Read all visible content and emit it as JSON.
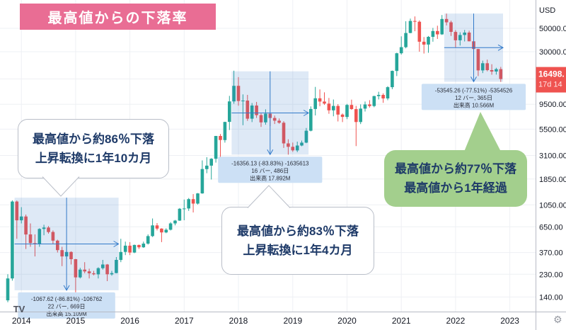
{
  "title": "最高値からの下落率",
  "colors": {
    "up": "#26a69a",
    "down": "#ef5350",
    "banner_pink": "#e96d94",
    "callout_green": "#a3cf8d",
    "measure_blue": "#3179c9",
    "measure_fill": "rgba(49,121,201,0.16)",
    "measure_label_bg": "#c9def4",
    "grid": "#eef0f4",
    "axis_text": "#131722"
  },
  "callouts": [
    {
      "line1": "最高値から約86％下落",
      "line2": "上昇転換に1年10カ月"
    },
    {
      "line1": "最高値から約83％下落",
      "line2": "上昇転換に1年4カ月"
    },
    {
      "line1": "最高値から約77％下落",
      "line2": "最高値から1年経過"
    }
  ],
  "measurements": [
    {
      "from": 2,
      "to": 24,
      "price_from": 1230,
      "price_to": 162,
      "stats": [
        "-1067.62 (-86.81%) -106762",
        "22 バー, 669日",
        "出来高 15.109M"
      ]
    },
    {
      "from": 50,
      "to": 66,
      "price_from": 19510,
      "price_to": 3154,
      "stats": [
        "-16356.13 (-83.83%) -1635613",
        "16 バー, 486日",
        "出来高 17.892M"
      ]
    },
    {
      "from": 97,
      "to": 109,
      "price_from": 69080,
      "price_to": 15535,
      "stats": [
        "-53545.26 (-77.51%) -5354526",
        "12 バー, 365日",
        "出来高 10.566M"
      ]
    }
  ],
  "y_axis": {
    "title": "USD",
    "ticks": [
      {
        "label": "50000.00",
        "value": 50000
      },
      {
        "label": "30000.00",
        "value": 30000
      },
      {
        "label": "",
        "value": 16500
      },
      {
        "label": "9500.00",
        "value": 9500
      },
      {
        "label": "5500.00",
        "value": 5500
      },
      {
        "label": "3100.00",
        "value": 3100
      },
      {
        "label": "1850.00",
        "value": 1850
      },
      {
        "label": "1050.00",
        "value": 1050
      },
      {
        "label": "650.00",
        "value": 650
      },
      {
        "label": "370.00",
        "value": 370
      },
      {
        "label": "230.00",
        "value": 230
      },
      {
        "label": "140.00",
        "value": 140
      }
    ],
    "price_tag": {
      "line1": "16498.",
      "line2": "17d 14",
      "value": 16498
    }
  },
  "x_axis": {
    "years": [
      "2014",
      "2015",
      "2016",
      "2017",
      "2018",
      "2019",
      "2020",
      "2021",
      "2022",
      "2023"
    ]
  },
  "footer": {
    "logo": "TV",
    "gear_icon": "⚙"
  },
  "chart_data": {
    "type": "candlestick",
    "title": "最高値からの下落率",
    "currency": "USD",
    "timeframe": "1M",
    "scale": "log",
    "start_month": "2013-10",
    "ylim": [
      120,
      75000
    ],
    "candles": [
      [
        130,
        230,
        125,
        210
      ],
      [
        210,
        1160,
        200,
        1130
      ],
      [
        1130,
        1155,
        500,
        750
      ],
      [
        750,
        1000,
        700,
        815
      ],
      [
        815,
        850,
        400,
        550
      ],
      [
        550,
        700,
        420,
        455
      ],
      [
        455,
        550,
        340,
        445
      ],
      [
        445,
        630,
        420,
        620
      ],
      [
        620,
        680,
        540,
        640
      ],
      [
        640,
        660,
        560,
        580
      ],
      [
        580,
        600,
        450,
        480
      ],
      [
        480,
        490,
        370,
        390
      ],
      [
        390,
        420,
        275,
        340
      ],
      [
        340,
        460,
        320,
        375
      ],
      [
        375,
        380,
        285,
        320
      ],
      [
        320,
        322,
        155,
        215
      ],
      [
        215,
        265,
        210,
        255
      ],
      [
        255,
        300,
        235,
        245
      ],
      [
        245,
        260,
        210,
        235
      ],
      [
        235,
        248,
        225,
        230
      ],
      [
        230,
        268,
        210,
        263
      ],
      [
        263,
        315,
        255,
        285
      ],
      [
        285,
        288,
        198,
        230
      ],
      [
        230,
        248,
        223,
        236
      ],
      [
        236,
        335,
        235,
        315
      ],
      [
        315,
        500,
        300,
        375
      ],
      [
        375,
        470,
        350,
        430
      ],
      [
        430,
        465,
        350,
        370
      ],
      [
        370,
        440,
        365,
        437
      ],
      [
        437,
        440,
        400,
        415
      ],
      [
        415,
        470,
        410,
        450
      ],
      [
        450,
        550,
        440,
        530
      ],
      [
        530,
        780,
        520,
        670
      ],
      [
        670,
        705,
        600,
        625
      ],
      [
        625,
        630,
        465,
        575
      ],
      [
        575,
        630,
        565,
        610
      ],
      [
        610,
        720,
        600,
        700
      ],
      [
        700,
        755,
        670,
        745
      ],
      [
        745,
        980,
        740,
        965
      ],
      [
        965,
        1180,
        750,
        970
      ],
      [
        970,
        1220,
        920,
        1190
      ],
      [
        1190,
        1330,
        890,
        1080
      ],
      [
        1080,
        1360,
        1060,
        1350
      ],
      [
        1350,
        2780,
        1340,
        2300
      ],
      [
        2300,
        2980,
        2100,
        2480
      ],
      [
        2480,
        2920,
        1830,
        2880
      ],
      [
        2880,
        4750,
        2650,
        4740
      ],
      [
        4740,
        4950,
        2950,
        4340
      ],
      [
        4340,
        6480,
        4100,
        6450
      ],
      [
        6450,
        11400,
        5400,
        10100
      ],
      [
        10100,
        19800,
        9600,
        14200
      ],
      [
        14200,
        17200,
        9200,
        10200
      ],
      [
        10200,
        11780,
        6000,
        10300
      ],
      [
        10300,
        11650,
        6600,
        6930
      ],
      [
        6930,
        9750,
        6430,
        9240
      ],
      [
        9240,
        9990,
        7040,
        7490
      ],
      [
        7490,
        7750,
        5780,
        6390
      ],
      [
        6390,
        8500,
        6070,
        7730
      ],
      [
        7730,
        7760,
        5880,
        7030
      ],
      [
        7030,
        7410,
        6160,
        6630
      ],
      [
        6630,
        6950,
        6200,
        6340
      ],
      [
        6340,
        6560,
        3650,
        4030
      ],
      [
        4030,
        4410,
        3150,
        3740
      ],
      [
        3740,
        4110,
        3350,
        3460
      ],
      [
        3460,
        4190,
        3330,
        3850
      ],
      [
        3850,
        4290,
        3790,
        4100
      ],
      [
        4100,
        5650,
        4050,
        5320
      ],
      [
        5320,
        9060,
        5250,
        8560
      ],
      [
        8560,
        13880,
        7430,
        10820
      ],
      [
        10820,
        13130,
        9080,
        10080
      ],
      [
        10080,
        12320,
        9360,
        9630
      ],
      [
        9630,
        10900,
        7700,
        8310
      ],
      [
        8310,
        10540,
        7300,
        9150
      ],
      [
        9150,
        9520,
        6520,
        7570
      ],
      [
        7570,
        7760,
        6430,
        7190
      ],
      [
        7190,
        9570,
        6850,
        9350
      ],
      [
        9350,
        10500,
        8400,
        8540
      ],
      [
        8540,
        9170,
        3800,
        6440
      ],
      [
        6440,
        9460,
        6150,
        8630
      ],
      [
        8630,
        10070,
        8100,
        9450
      ],
      [
        9450,
        10380,
        8830,
        9140
      ],
      [
        9140,
        11440,
        8900,
        11350
      ],
      [
        11350,
        12470,
        10550,
        11650
      ],
      [
        11650,
        12050,
        9800,
        10780
      ],
      [
        10780,
        14100,
        10380,
        13800
      ],
      [
        13800,
        19860,
        13200,
        19700
      ],
      [
        19700,
        29300,
        17600,
        29000
      ],
      [
        29000,
        41950,
        28130,
        33110
      ],
      [
        33110,
        58350,
        32300,
        45160
      ],
      [
        45160,
        61800,
        44950,
        58780
      ],
      [
        58780,
        64850,
        46930,
        57750
      ],
      [
        57750,
        59500,
        30000,
        37330
      ],
      [
        37330,
        41330,
        28800,
        35040
      ],
      [
        35040,
        42230,
        29300,
        41490
      ],
      [
        41490,
        50500,
        37330,
        47130
      ],
      [
        47130,
        52950,
        39600,
        43790
      ],
      [
        43790,
        66930,
        43290,
        61320
      ],
      [
        61320,
        69000,
        53260,
        57000
      ],
      [
        57000,
        59100,
        42330,
        46220
      ],
      [
        46220,
        47990,
        32950,
        38480
      ],
      [
        38480,
        45820,
        34300,
        43190
      ],
      [
        43190,
        48240,
        37550,
        45540
      ],
      [
        45540,
        47450,
        37580,
        37640
      ],
      [
        37640,
        40000,
        26700,
        31790
      ],
      [
        31790,
        31960,
        17590,
        19920
      ],
      [
        19920,
        24670,
        18780,
        23290
      ],
      [
        23290,
        25200,
        19520,
        20050
      ],
      [
        20050,
        22800,
        18125,
        19430
      ],
      [
        19430,
        21080,
        18190,
        20490
      ],
      [
        20490,
        21480,
        15480,
        16498
      ]
    ]
  }
}
